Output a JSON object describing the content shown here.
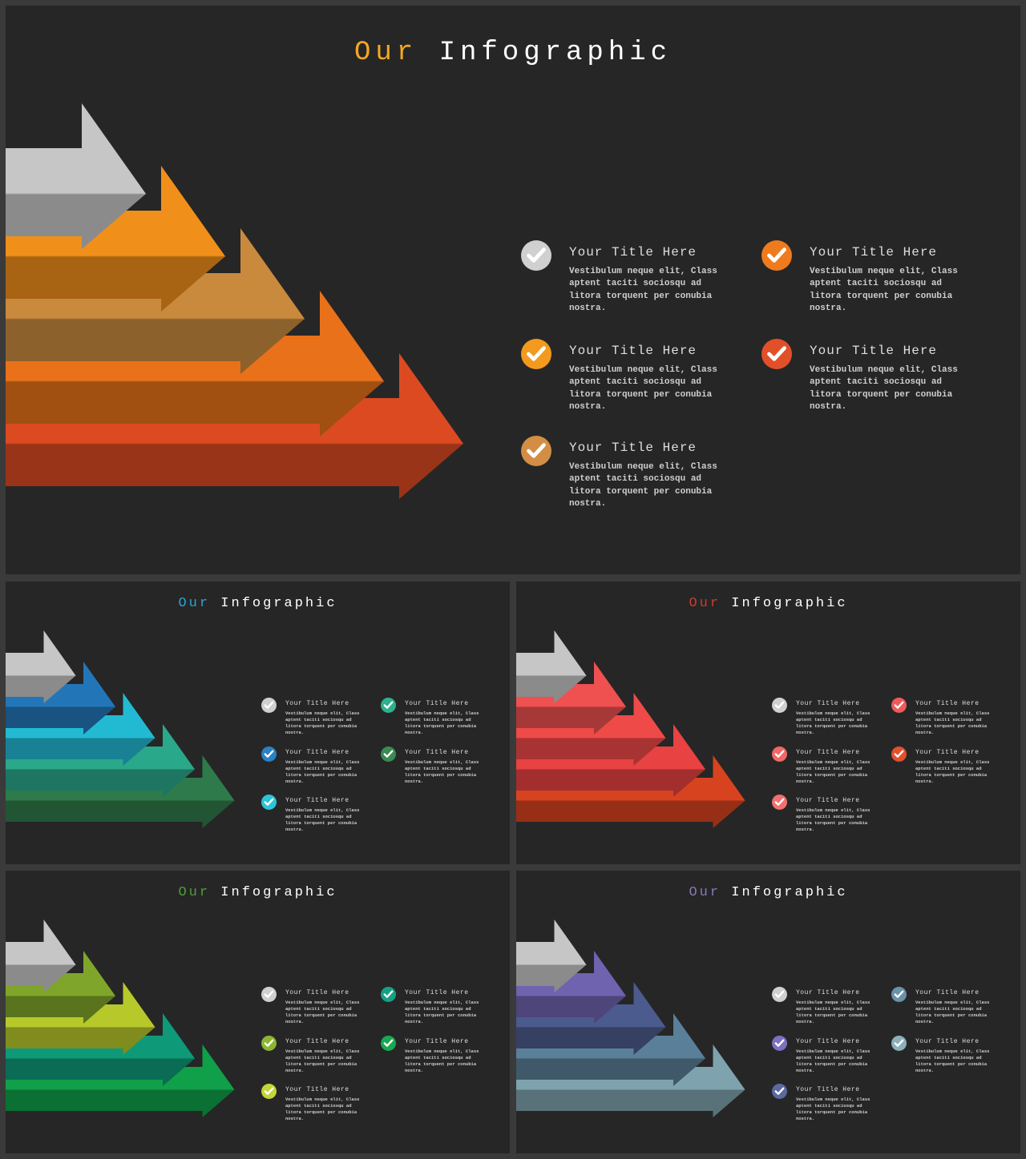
{
  "slides": [
    {
      "title_accent": "Our",
      "title_rest": "Infographic",
      "accent_color": "#f4a723",
      "arrow_colors": [
        "#c6c6c6",
        "#f18f1b",
        "#c98a3e",
        "#e8711a",
        "#dc4a22"
      ],
      "items": [
        {
          "check_color": "#d0d0d0",
          "title": "Your Title Here",
          "text": "Vestibulum neque elit, Class aptent taciti sociosqu ad litora torquent per conubia nostra."
        },
        {
          "check_color": "#f39a1e",
          "title": "Your Title Here",
          "text": "Vestibulum neque elit, Class aptent taciti sociosqu ad litora torquent per conubia nostra."
        },
        {
          "check_color": "#d38e45",
          "title": "Your Title Here",
          "text": "Vestibulum neque elit, Class aptent taciti sociosqu ad litora torquent per conubia nostra."
        },
        {
          "check_color": "#ef7b1e",
          "title": "Your Title Here",
          "text": "Vestibulum neque elit, Class aptent taciti sociosqu ad litora torquent per conubia nostra."
        },
        {
          "check_color": "#e2502a",
          "title": "Your Title Here",
          "text": "Vestibulum neque elit, Class aptent taciti sociosqu ad litora torquent per conubia nostra."
        }
      ]
    },
    {
      "title_accent": "Our",
      "title_rest": "Infographic",
      "accent_color": "#2aa3d6",
      "arrow_colors": [
        "#c6c6c6",
        "#2276b8",
        "#22bad3",
        "#2aa88a",
        "#2f7a4a"
      ],
      "items": [
        {
          "check_color": "#d0d0d0",
          "title": "Your Title Here",
          "text": "Vestibulum neque elit, Class aptent taciti sociosqu ad litora torquent per conubia nostra."
        },
        {
          "check_color": "#2a82c4",
          "title": "Your Title Here",
          "text": "Vestibulum neque elit, Class aptent taciti sociosqu ad litora torquent per conubia nostra."
        },
        {
          "check_color": "#2cc4d8",
          "title": "Your Title Here",
          "text": "Vestibulum neque elit, Class aptent taciti sociosqu ad litora torquent per conubia nostra."
        },
        {
          "check_color": "#2fb08e",
          "title": "Your Title Here",
          "text": "Vestibulum neque elit, Class aptent taciti sociosqu ad litora torquent per conubia nostra."
        },
        {
          "check_color": "#3a8a52",
          "title": "Your Title Here",
          "text": "Vestibulum neque elit, Class aptent taciti sociosqu ad litora torquent per conubia nostra."
        }
      ]
    },
    {
      "title_accent": "Our",
      "title_rest": "Infographic",
      "accent_color": "#d23a2a",
      "arrow_colors": [
        "#c6c6c6",
        "#ef5050",
        "#ee4a48",
        "#e84242",
        "#d8431f"
      ],
      "items": [
        {
          "check_color": "#d0d0d0",
          "title": "Your Title Here",
          "text": "Vestibulum neque elit, Class aptent taciti sociosqu ad litora torquent per conubia nostra."
        },
        {
          "check_color": "#f06868",
          "title": "Your Title Here",
          "text": "Vestibulum neque elit, Class aptent taciti sociosqu ad litora torquent per conubia nostra."
        },
        {
          "check_color": "#f07070",
          "title": "Your Title Here",
          "text": "Vestibulum neque elit, Class aptent taciti sociosqu ad litora torquent per conubia nostra."
        },
        {
          "check_color": "#ef5a5a",
          "title": "Your Title Here",
          "text": "Vestibulum neque elit, Class aptent taciti sociosqu ad litora torquent per conubia nostra."
        },
        {
          "check_color": "#e4502c",
          "title": "Your Title Here",
          "text": "Vestibulum neque elit, Class aptent taciti sociosqu ad litora torquent per conubia nostra."
        }
      ]
    },
    {
      "title_accent": "Our",
      "title_rest": "Infographic",
      "accent_color": "#4f9e3a",
      "arrow_colors": [
        "#c6c6c6",
        "#7fa62a",
        "#b7c82a",
        "#0e9a78",
        "#0fa049"
      ],
      "items": [
        {
          "check_color": "#d0d0d0",
          "title": "Your Title Here",
          "text": "Vestibulum neque elit, Class aptent taciti sociosqu ad litora torquent per conubia nostra."
        },
        {
          "check_color": "#8cb532",
          "title": "Your Title Here",
          "text": "Vestibulum neque elit, Class aptent taciti sociosqu ad litora torquent per conubia nostra."
        },
        {
          "check_color": "#c4d53a",
          "title": "Your Title Here",
          "text": "Vestibulum neque elit, Class aptent taciti sociosqu ad litora torquent per conubia nostra."
        },
        {
          "check_color": "#16a083",
          "title": "Your Title Here",
          "text": "Vestibulum neque elit, Class aptent taciti sociosqu ad litora torquent per conubia nostra."
        },
        {
          "check_color": "#1aa852",
          "title": "Your Title Here",
          "text": "Vestibulum neque elit, Class aptent taciti sociosqu ad litora torquent per conubia nostra."
        }
      ]
    },
    {
      "title_accent": "Our",
      "title_rest": "Infographic",
      "accent_color": "#8a78b8",
      "arrow_colors": [
        "#c6c6c6",
        "#6f63b0",
        "#4c5b8e",
        "#5a7f99",
        "#7fa3ae"
      ],
      "items": [
        {
          "check_color": "#d0d0d0",
          "title": "Your Title Here",
          "text": "Vestibulum neque elit, Class aptent taciti sociosqu ad litora torquent per conubia nostra."
        },
        {
          "check_color": "#7e70c0",
          "title": "Your Title Here",
          "text": "Vestibulum neque elit, Class aptent taciti sociosqu ad litora torquent per conubia nostra."
        },
        {
          "check_color": "#5a6aa0",
          "title": "Your Title Here",
          "text": "Vestibulum neque elit, Class aptent taciti sociosqu ad litora torquent per conubia nostra."
        },
        {
          "check_color": "#6a92aa",
          "title": "Your Title Here",
          "text": "Vestibulum neque elit, Class aptent taciti sociosqu ad litora torquent per conubia nostra."
        },
        {
          "check_color": "#8cb0ba",
          "title": "Your Title Here",
          "text": "Vestibulum neque elit, Class aptent taciti sociosqu ad litora torquent per conubia nostra."
        }
      ]
    }
  ]
}
